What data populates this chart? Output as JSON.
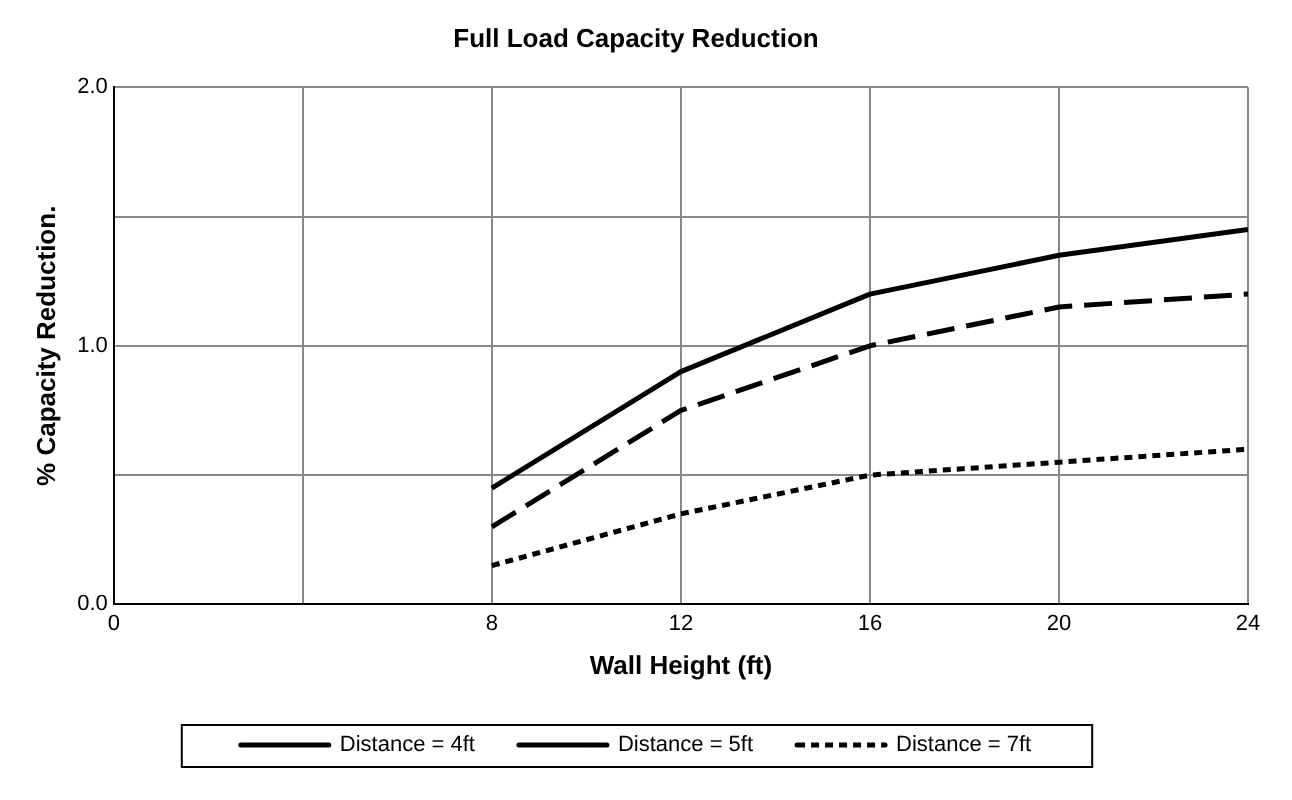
{
  "chart_data": {
    "type": "line",
    "title": "Full Load Capacity Reduction",
    "xlabel": "Wall Height (ft)",
    "ylabel": "% Capacity Reduction.",
    "x": [
      8,
      12,
      16,
      20,
      24
    ],
    "series": [
      {
        "name": "Distance = 4ft",
        "color": "#000000",
        "line_style": "solid",
        "values": [
          0.45,
          0.9,
          1.2,
          1.35,
          1.45
        ]
      },
      {
        "name": "Distance = 5ft",
        "color": "#000000",
        "line_style": "dashed",
        "values": [
          0.3,
          0.75,
          1.0,
          1.15,
          1.2
        ]
      },
      {
        "name": "Distance = 7ft",
        "color": "#000000",
        "line_style": "dotted",
        "values": [
          0.15,
          0.35,
          0.5,
          0.55,
          0.6
        ]
      }
    ],
    "xlim": [
      0,
      24
    ],
    "xticks": [
      0,
      {
        "value": 4,
        "label": null
      },
      8,
      12,
      16,
      20,
      24
    ],
    "ylim": [
      0,
      2
    ],
    "yticks": [
      {
        "value": 0,
        "label": "0.0"
      },
      {
        "value": 0.5,
        "label": null
      },
      {
        "value": 1,
        "label": "1.0"
      },
      {
        "value": 1.5,
        "label": null
      },
      {
        "value": 2,
        "label": "2.0"
      }
    ],
    "grid": true,
    "legend": "bottom",
    "marker": "none"
  }
}
